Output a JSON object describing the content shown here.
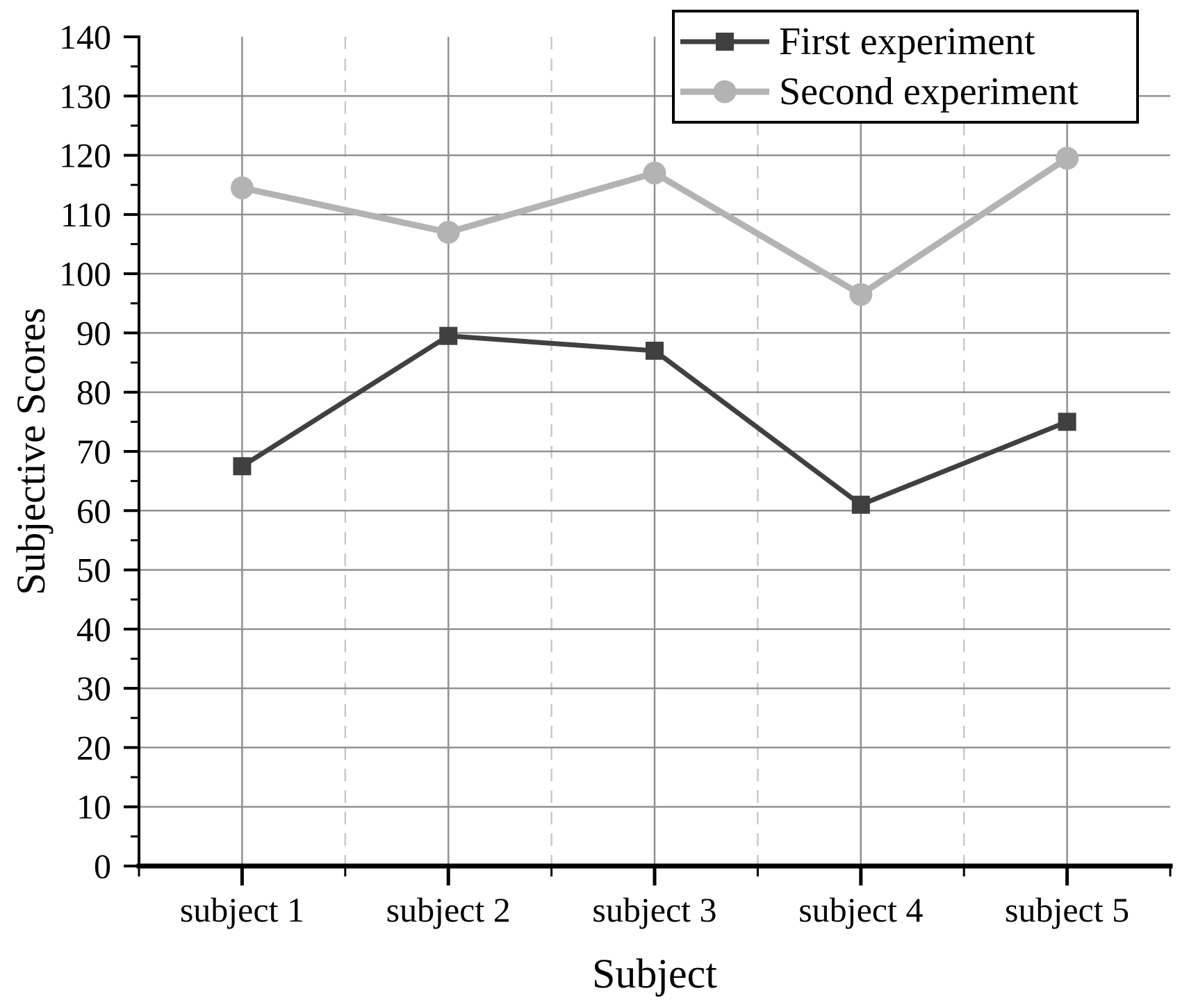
{
  "chart_data": {
    "type": "line",
    "title": "",
    "xlabel": "Subject",
    "ylabel": "Subjective Scores",
    "categories": [
      "subject 1",
      "subject 2",
      "subject 3",
      "subject 4",
      "subject 5"
    ],
    "series": [
      {
        "name": "First experiment",
        "marker": "square",
        "color": "#404040",
        "values": [
          67.5,
          89.5,
          87,
          61,
          75
        ]
      },
      {
        "name": "Second experiment",
        "marker": "circle",
        "color": "#b3b3b3",
        "values": [
          114.5,
          107,
          117,
          96.5,
          119.5
        ]
      }
    ],
    "ylim": [
      0,
      140
    ],
    "ytick_step": 10,
    "ytick_minor_step": 5,
    "grid": {
      "horizontal_major": "solid",
      "vertical_major": "solid",
      "vertical_minor": "dashed"
    },
    "legend_position": "top-right",
    "colors": {
      "grid_solid": "#909090",
      "grid_dashed": "#c9c9c9",
      "axis": "#000000",
      "text": "#000000",
      "background": "#ffffff"
    }
  }
}
